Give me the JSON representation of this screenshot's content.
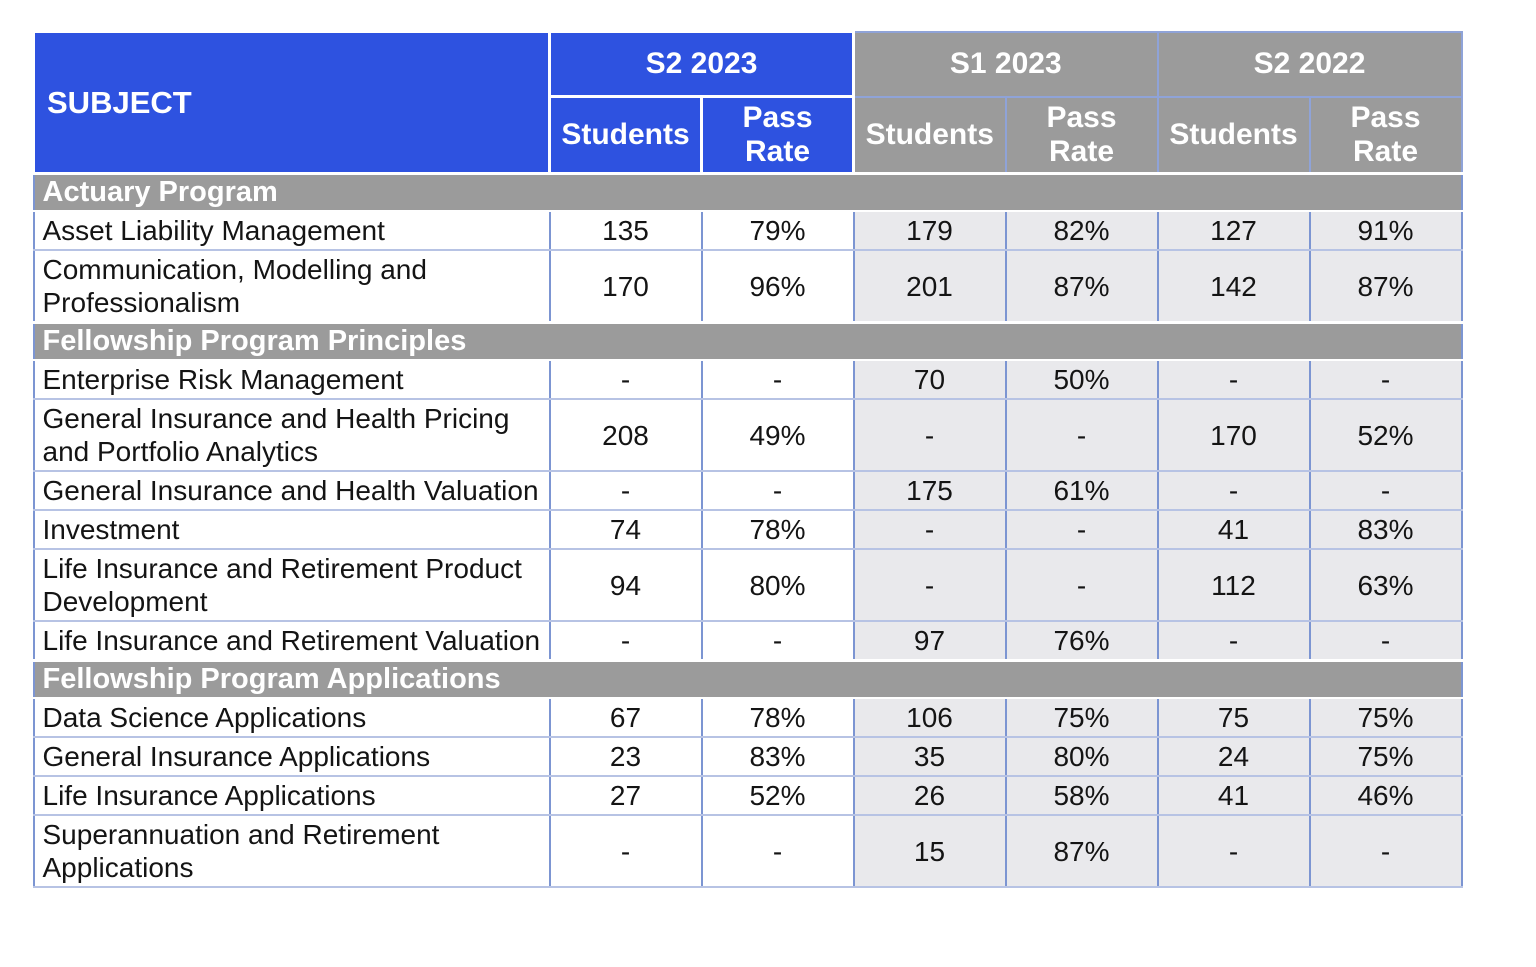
{
  "chart_data": {
    "type": "table",
    "subject_header": "SUBJECT",
    "semesters": [
      "S2 2023",
      "S1 2023",
      "S2 2022"
    ],
    "column_headers": [
      "Students",
      "Pass\nRate"
    ],
    "columns": [
      "Subject",
      "S2 2023 Students",
      "S2 2023 Pass Rate",
      "S1 2023 Students",
      "S1 2023 Pass Rate",
      "S2 2022 Students",
      "S2 2022 Pass Rate"
    ],
    "sections": [
      {
        "title": "Actuary Program",
        "rows": [
          {
            "subject": "Asset Liability Management",
            "values": [
              "135",
              "79%",
              "179",
              "82%",
              "127",
              "91%"
            ]
          },
          {
            "subject": "Communication, Modelling and Professionalism",
            "values": [
              "170",
              "96%",
              "201",
              "87%",
              "142",
              "87%"
            ]
          }
        ]
      },
      {
        "title": "Fellowship Program Principles",
        "rows": [
          {
            "subject": "Enterprise Risk Management",
            "values": [
              "-",
              "-",
              "70",
              "50%",
              "-",
              "-"
            ]
          },
          {
            "subject": "General Insurance and Health Pricing and Portfolio Analytics",
            "values": [
              "208",
              "49%",
              "-",
              "-",
              "170",
              "52%"
            ]
          },
          {
            "subject": "General Insurance and Health Valuation",
            "values": [
              "-",
              "-",
              "175",
              "61%",
              "-",
              "-"
            ]
          },
          {
            "subject": "Investment",
            "values": [
              "74",
              "78%",
              "-",
              "-",
              "41",
              "83%"
            ]
          },
          {
            "subject": "Life Insurance and Retirement Product Development",
            "values": [
              "94",
              "80%",
              "-",
              "-",
              "112",
              "63%"
            ]
          },
          {
            "subject": "Life Insurance and Retirement Valuation",
            "values": [
              "-",
              "-",
              "97",
              "76%",
              "-",
              "-"
            ]
          }
        ]
      },
      {
        "title": "Fellowship Program Applications",
        "rows": [
          {
            "subject": "Data Science Applications",
            "values": [
              "67",
              "78%",
              "106",
              "75%",
              "75",
              "75%"
            ]
          },
          {
            "subject": "General Insurance Applications",
            "values": [
              "23",
              "83%",
              "35",
              "80%",
              "24",
              "75%"
            ]
          },
          {
            "subject": "Life Insurance Applications",
            "values": [
              "27",
              "52%",
              "26",
              "58%",
              "41",
              "46%"
            ]
          },
          {
            "subject": "Superannuation and Retirement Applications",
            "values": [
              "-",
              "-",
              "15",
              "87%",
              "-",
              "-"
            ]
          }
        ]
      }
    ]
  },
  "colors": {
    "header_blue": "#2E52E0",
    "header_gray": "#9B9B9B",
    "cell_shade_gray": "#E9E9EC",
    "grid_vertical_blue": "#7C95D2",
    "grid_horizontal_blue": "#B7C3E4",
    "header_text": "#FFFFFF",
    "body_text": "#141414"
  }
}
